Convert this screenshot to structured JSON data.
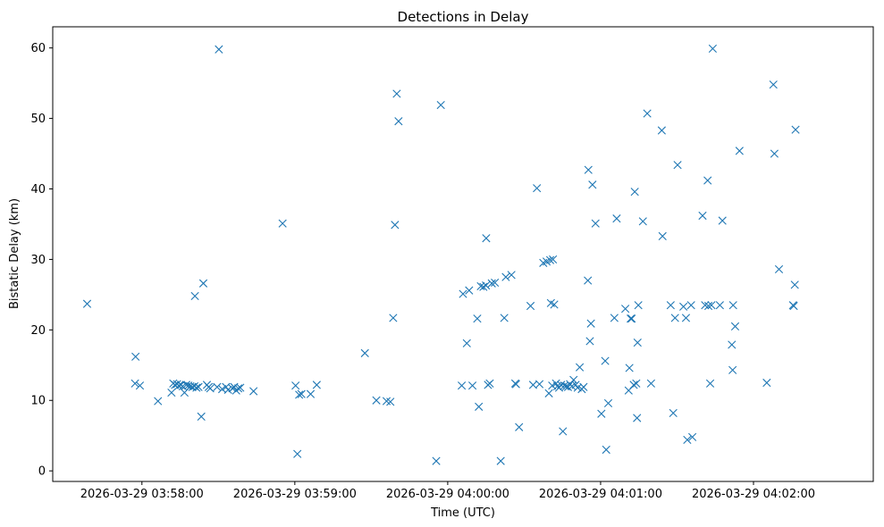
{
  "chart_data": {
    "type": "scatter",
    "title": "Detections in Delay",
    "xlabel": "Time (UTC)",
    "ylabel": "Bistatic Delay (km)",
    "marker": "x",
    "color": "#1f77b4",
    "x_unit": "seconds since 2026-03-29 03:57:00",
    "xlim": [
      0,
      322
    ],
    "ylim": [
      -1.5,
      63
    ],
    "x_ticks": [
      {
        "value": 35,
        "label": "2026-03-29 03:58:00"
      },
      {
        "value": 95,
        "label": "2026-03-29 03:59:00"
      },
      {
        "value": 155,
        "label": "2026-03-29 04:00:00"
      },
      {
        "value": 215,
        "label": "2026-03-29 04:01:00"
      },
      {
        "value": 275,
        "label": "2026-03-29 04:02:00"
      }
    ],
    "y_ticks": [
      {
        "value": 0,
        "label": "0"
      },
      {
        "value": 10,
        "label": "10"
      },
      {
        "value": 20,
        "label": "20"
      },
      {
        "value": 30,
        "label": "30"
      },
      {
        "value": 40,
        "label": "40"
      },
      {
        "value": 50,
        "label": "50"
      },
      {
        "value": 60,
        "label": "60"
      }
    ],
    "points": [
      [
        13.5,
        23.7
      ],
      [
        32.5,
        16.2
      ],
      [
        32.3,
        12.4
      ],
      [
        34.2,
        12.1
      ],
      [
        41.3,
        9.9
      ],
      [
        46.6,
        11.1
      ],
      [
        47.3,
        12.4
      ],
      [
        48.0,
        12.2
      ],
      [
        48.8,
        12.3
      ],
      [
        49.5,
        12.1
      ],
      [
        50.3,
        12.2
      ],
      [
        51.0,
        12.0
      ],
      [
        51.7,
        11.1
      ],
      [
        52.4,
        12.2
      ],
      [
        53.2,
        12.1
      ],
      [
        54.0,
        12.0
      ],
      [
        54.8,
        11.9
      ],
      [
        55.6,
        12.0
      ],
      [
        56.4,
        11.8
      ],
      [
        57.2,
        11.9
      ],
      [
        55.8,
        24.8
      ],
      [
        58.3,
        7.7
      ],
      [
        59.1,
        26.6
      ],
      [
        60.5,
        12.2
      ],
      [
        61.2,
        11.9
      ],
      [
        61.8,
        11.7
      ],
      [
        65.2,
        59.8
      ],
      [
        64.5,
        11.9
      ],
      [
        66.5,
        11.6
      ],
      [
        68.0,
        11.9
      ],
      [
        68.8,
        11.5
      ],
      [
        70.5,
        11.7
      ],
      [
        71.2,
        11.9
      ],
      [
        72.0,
        11.4
      ],
      [
        72.8,
        11.7
      ],
      [
        73.6,
        11.8
      ],
      [
        78.8,
        11.3
      ],
      [
        90.2,
        35.1
      ],
      [
        95.3,
        12.1
      ],
      [
        96.0,
        2.4
      ],
      [
        96.7,
        10.8
      ],
      [
        97.6,
        10.9
      ],
      [
        101.2,
        10.9
      ],
      [
        103.6,
        12.2
      ],
      [
        122.5,
        16.7
      ],
      [
        127.0,
        10.0
      ],
      [
        131.0,
        9.9
      ],
      [
        132.5,
        9.8
      ],
      [
        133.6,
        21.7
      ],
      [
        134.3,
        34.9
      ],
      [
        135.0,
        53.5
      ],
      [
        135.7,
        49.6
      ],
      [
        150.5,
        1.4
      ],
      [
        152.3,
        51.9
      ],
      [
        160.5,
        12.1
      ],
      [
        161.0,
        25.1
      ],
      [
        162.5,
        18.1
      ],
      [
        163.4,
        25.6
      ],
      [
        164.7,
        12.1
      ],
      [
        166.6,
        21.6
      ],
      [
        167.2,
        9.1
      ],
      [
        168.0,
        26.2
      ],
      [
        169.0,
        26.1
      ],
      [
        170.1,
        33.0
      ],
      [
        170.0,
        26.3
      ],
      [
        170.8,
        12.2
      ],
      [
        171.5,
        12.4
      ],
      [
        172.3,
        26.6
      ],
      [
        173.5,
        26.7
      ],
      [
        175.8,
        1.4
      ],
      [
        177.2,
        21.7
      ],
      [
        177.8,
        27.5
      ],
      [
        180.0,
        27.8
      ],
      [
        181.5,
        12.4
      ],
      [
        181.8,
        12.3
      ],
      [
        183.0,
        6.2
      ],
      [
        187.5,
        23.4
      ],
      [
        188.5,
        12.2
      ],
      [
        190.0,
        40.1
      ],
      [
        191.0,
        12.3
      ],
      [
        192.5,
        29.5
      ],
      [
        193.8,
        29.7
      ],
      [
        194.7,
        11.0
      ],
      [
        195.2,
        29.9
      ],
      [
        195.5,
        23.8
      ],
      [
        196.3,
        30.0
      ],
      [
        196.0,
        12.1
      ],
      [
        196.8,
        23.6
      ],
      [
        197.5,
        12.4
      ],
      [
        198.0,
        12.0
      ],
      [
        198.7,
        11.8
      ],
      [
        199.5,
        12.2
      ],
      [
        200.2,
        5.6
      ],
      [
        200.8,
        12.1
      ],
      [
        201.5,
        12.0
      ],
      [
        202.2,
        11.9
      ],
      [
        203.0,
        12.3
      ],
      [
        203.7,
        12.0
      ],
      [
        204.4,
        12.9
      ],
      [
        205.2,
        12.2
      ],
      [
        206.0,
        11.8
      ],
      [
        206.8,
        14.7
      ],
      [
        207.6,
        11.6
      ],
      [
        208.3,
        11.9
      ],
      [
        210.0,
        27.0
      ],
      [
        210.2,
        42.7
      ],
      [
        210.8,
        18.4
      ],
      [
        211.2,
        20.9
      ],
      [
        211.8,
        40.6
      ],
      [
        213.0,
        35.1
      ],
      [
        215.3,
        8.1
      ],
      [
        216.8,
        15.6
      ],
      [
        217.2,
        3.0
      ],
      [
        218.0,
        9.6
      ],
      [
        220.4,
        21.7
      ],
      [
        221.3,
        35.8
      ],
      [
        224.7,
        23.0
      ],
      [
        226.0,
        11.4
      ],
      [
        226.3,
        14.6
      ],
      [
        226.8,
        21.6
      ],
      [
        227.2,
        21.6
      ],
      [
        228.0,
        12.2
      ],
      [
        228.4,
        39.6
      ],
      [
        229.0,
        12.4
      ],
      [
        229.5,
        18.2
      ],
      [
        229.8,
        23.5
      ],
      [
        229.3,
        7.5
      ],
      [
        231.6,
        35.4
      ],
      [
        233.3,
        50.7
      ],
      [
        234.8,
        12.4
      ],
      [
        239.0,
        48.3
      ],
      [
        239.3,
        33.3
      ],
      [
        242.5,
        23.5
      ],
      [
        243.5,
        8.2
      ],
      [
        244.2,
        21.7
      ],
      [
        245.2,
        43.4
      ],
      [
        247.5,
        23.3
      ],
      [
        248.5,
        21.7
      ],
      [
        249.0,
        4.4
      ],
      [
        250.5,
        23.5
      ],
      [
        251.0,
        4.8
      ],
      [
        255.0,
        36.2
      ],
      [
        256.0,
        23.5
      ],
      [
        257.0,
        41.2
      ],
      [
        257.3,
        23.4
      ],
      [
        258.5,
        23.5
      ],
      [
        258.0,
        12.4
      ],
      [
        259.0,
        59.9
      ],
      [
        261.8,
        23.5
      ],
      [
        262.8,
        35.5
      ],
      [
        266.5,
        17.9
      ],
      [
        266.8,
        14.3
      ],
      [
        267.0,
        23.5
      ],
      [
        267.8,
        20.5
      ],
      [
        269.5,
        45.4
      ],
      [
        280.2,
        12.5
      ],
      [
        282.8,
        54.8
      ],
      [
        283.2,
        45.0
      ],
      [
        285.0,
        28.6
      ],
      [
        290.5,
        23.5
      ],
      [
        290.8,
        23.4
      ],
      [
        291.2,
        26.4
      ],
      [
        291.5,
        48.4
      ]
    ]
  }
}
